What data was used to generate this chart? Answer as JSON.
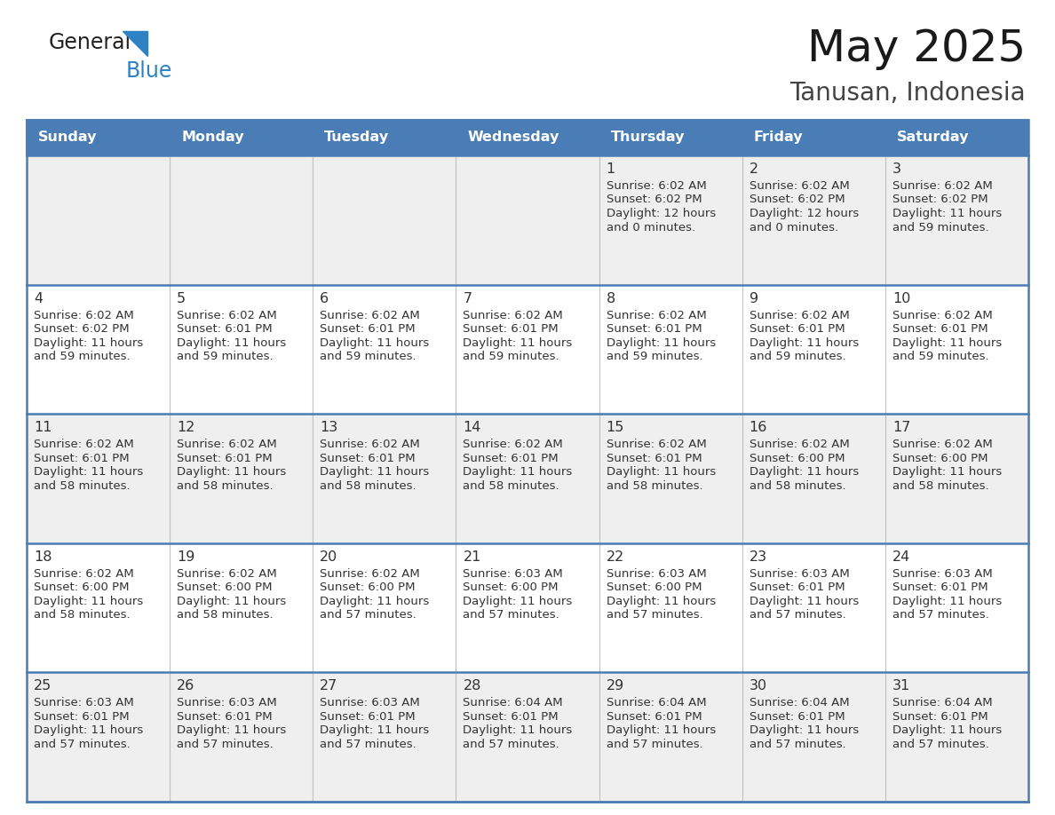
{
  "title": "May 2025",
  "subtitle": "Tanusan, Indonesia",
  "days_of_week": [
    "Sunday",
    "Monday",
    "Tuesday",
    "Wednesday",
    "Thursday",
    "Friday",
    "Saturday"
  ],
  "header_bg": "#4a7db5",
  "header_text": "#ffffff",
  "row_bg_odd": "#efefef",
  "row_bg_even": "#ffffff",
  "border_color": "#4a7db5",
  "cell_divider_color": "#c0c0c0",
  "text_color": "#333333",
  "info_text_color": "#333333",
  "logo_general_color": "#222222",
  "logo_blue_color": "#2e82c4",
  "calendar": [
    [
      null,
      null,
      null,
      null,
      {
        "day": 1,
        "sunrise": "6:02 AM",
        "sunset": "6:02 PM",
        "daylight_h": "12 hours",
        "daylight_m": "and 0 minutes."
      },
      {
        "day": 2,
        "sunrise": "6:02 AM",
        "sunset": "6:02 PM",
        "daylight_h": "12 hours",
        "daylight_m": "and 0 minutes."
      },
      {
        "day": 3,
        "sunrise": "6:02 AM",
        "sunset": "6:02 PM",
        "daylight_h": "11 hours",
        "daylight_m": "and 59 minutes."
      }
    ],
    [
      {
        "day": 4,
        "sunrise": "6:02 AM",
        "sunset": "6:02 PM",
        "daylight_h": "11 hours",
        "daylight_m": "and 59 minutes."
      },
      {
        "day": 5,
        "sunrise": "6:02 AM",
        "sunset": "6:01 PM",
        "daylight_h": "11 hours",
        "daylight_m": "and 59 minutes."
      },
      {
        "day": 6,
        "sunrise": "6:02 AM",
        "sunset": "6:01 PM",
        "daylight_h": "11 hours",
        "daylight_m": "and 59 minutes."
      },
      {
        "day": 7,
        "sunrise": "6:02 AM",
        "sunset": "6:01 PM",
        "daylight_h": "11 hours",
        "daylight_m": "and 59 minutes."
      },
      {
        "day": 8,
        "sunrise": "6:02 AM",
        "sunset": "6:01 PM",
        "daylight_h": "11 hours",
        "daylight_m": "and 59 minutes."
      },
      {
        "day": 9,
        "sunrise": "6:02 AM",
        "sunset": "6:01 PM",
        "daylight_h": "11 hours",
        "daylight_m": "and 59 minutes."
      },
      {
        "day": 10,
        "sunrise": "6:02 AM",
        "sunset": "6:01 PM",
        "daylight_h": "11 hours",
        "daylight_m": "and 59 minutes."
      }
    ],
    [
      {
        "day": 11,
        "sunrise": "6:02 AM",
        "sunset": "6:01 PM",
        "daylight_h": "11 hours",
        "daylight_m": "and 58 minutes."
      },
      {
        "day": 12,
        "sunrise": "6:02 AM",
        "sunset": "6:01 PM",
        "daylight_h": "11 hours",
        "daylight_m": "and 58 minutes."
      },
      {
        "day": 13,
        "sunrise": "6:02 AM",
        "sunset": "6:01 PM",
        "daylight_h": "11 hours",
        "daylight_m": "and 58 minutes."
      },
      {
        "day": 14,
        "sunrise": "6:02 AM",
        "sunset": "6:01 PM",
        "daylight_h": "11 hours",
        "daylight_m": "and 58 minutes."
      },
      {
        "day": 15,
        "sunrise": "6:02 AM",
        "sunset": "6:01 PM",
        "daylight_h": "11 hours",
        "daylight_m": "and 58 minutes."
      },
      {
        "day": 16,
        "sunrise": "6:02 AM",
        "sunset": "6:00 PM",
        "daylight_h": "11 hours",
        "daylight_m": "and 58 minutes."
      },
      {
        "day": 17,
        "sunrise": "6:02 AM",
        "sunset": "6:00 PM",
        "daylight_h": "11 hours",
        "daylight_m": "and 58 minutes."
      }
    ],
    [
      {
        "day": 18,
        "sunrise": "6:02 AM",
        "sunset": "6:00 PM",
        "daylight_h": "11 hours",
        "daylight_m": "and 58 minutes."
      },
      {
        "day": 19,
        "sunrise": "6:02 AM",
        "sunset": "6:00 PM",
        "daylight_h": "11 hours",
        "daylight_m": "and 58 minutes."
      },
      {
        "day": 20,
        "sunrise": "6:02 AM",
        "sunset": "6:00 PM",
        "daylight_h": "11 hours",
        "daylight_m": "and 57 minutes."
      },
      {
        "day": 21,
        "sunrise": "6:03 AM",
        "sunset": "6:00 PM",
        "daylight_h": "11 hours",
        "daylight_m": "and 57 minutes."
      },
      {
        "day": 22,
        "sunrise": "6:03 AM",
        "sunset": "6:00 PM",
        "daylight_h": "11 hours",
        "daylight_m": "and 57 minutes."
      },
      {
        "day": 23,
        "sunrise": "6:03 AM",
        "sunset": "6:01 PM",
        "daylight_h": "11 hours",
        "daylight_m": "and 57 minutes."
      },
      {
        "day": 24,
        "sunrise": "6:03 AM",
        "sunset": "6:01 PM",
        "daylight_h": "11 hours",
        "daylight_m": "and 57 minutes."
      }
    ],
    [
      {
        "day": 25,
        "sunrise": "6:03 AM",
        "sunset": "6:01 PM",
        "daylight_h": "11 hours",
        "daylight_m": "and 57 minutes."
      },
      {
        "day": 26,
        "sunrise": "6:03 AM",
        "sunset": "6:01 PM",
        "daylight_h": "11 hours",
        "daylight_m": "and 57 minutes."
      },
      {
        "day": 27,
        "sunrise": "6:03 AM",
        "sunset": "6:01 PM",
        "daylight_h": "11 hours",
        "daylight_m": "and 57 minutes."
      },
      {
        "day": 28,
        "sunrise": "6:04 AM",
        "sunset": "6:01 PM",
        "daylight_h": "11 hours",
        "daylight_m": "and 57 minutes."
      },
      {
        "day": 29,
        "sunrise": "6:04 AM",
        "sunset": "6:01 PM",
        "daylight_h": "11 hours",
        "daylight_m": "and 57 minutes."
      },
      {
        "day": 30,
        "sunrise": "6:04 AM",
        "sunset": "6:01 PM",
        "daylight_h": "11 hours",
        "daylight_m": "and 57 minutes."
      },
      {
        "day": 31,
        "sunrise": "6:04 AM",
        "sunset": "6:01 PM",
        "daylight_h": "11 hours",
        "daylight_m": "and 57 minutes."
      }
    ]
  ]
}
